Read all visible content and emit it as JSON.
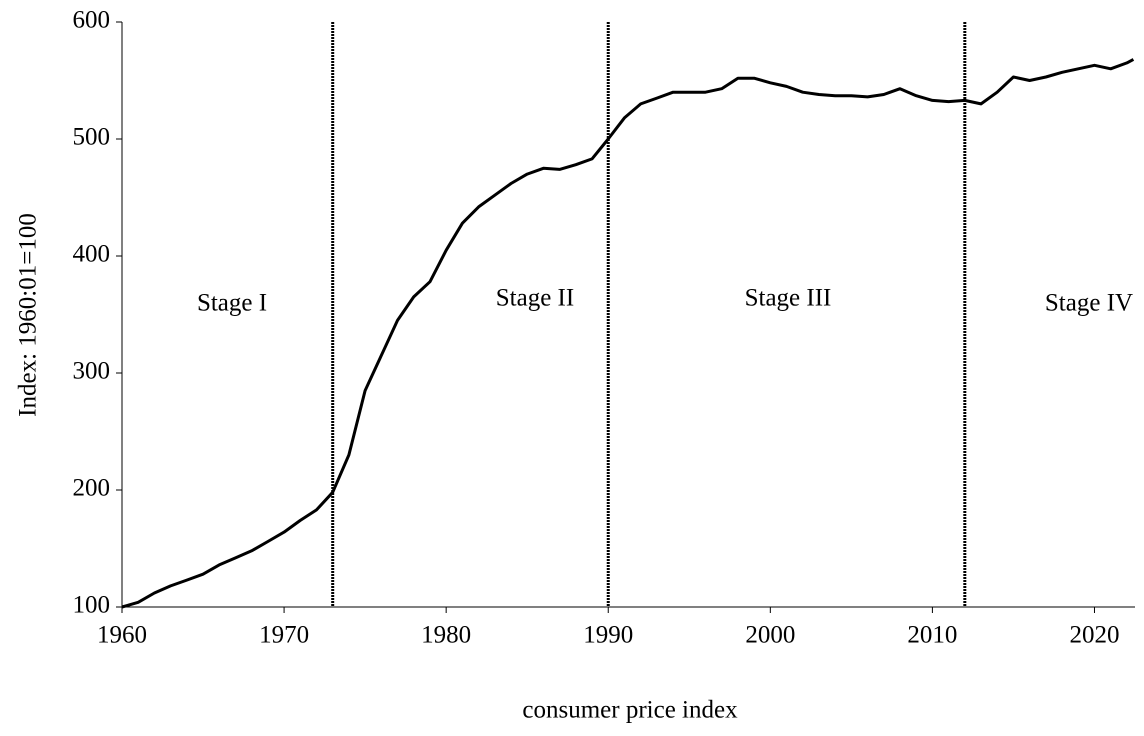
{
  "chart_data": {
    "type": "line",
    "x_label": "consumer price index",
    "y_label": "Index: 1960:01=100",
    "x": [
      1960,
      1961,
      1962,
      1963,
      1964,
      1965,
      1966,
      1967,
      1968,
      1969,
      1970,
      1971,
      1972,
      1973,
      1974,
      1975,
      1976,
      1977,
      1978,
      1979,
      1980,
      1981,
      1982,
      1983,
      1984,
      1985,
      1986,
      1987,
      1988,
      1989,
      1990,
      1991,
      1992,
      1993,
      1994,
      1995,
      1996,
      1997,
      1998,
      1999,
      2000,
      2001,
      2002,
      2003,
      2004,
      2005,
      2006,
      2007,
      2008,
      2009,
      2010,
      2011,
      2012,
      2013,
      2014,
      2015,
      2016,
      2017,
      2018,
      2019,
      2020,
      2021,
      2022,
      2022.4
    ],
    "series": [
      {
        "color": "#000000",
        "values": [
          100,
          104,
          112,
          118,
          123,
          128,
          136,
          142,
          148,
          156,
          164,
          174,
          183,
          198,
          230,
          285,
          315,
          345,
          365,
          378,
          405,
          428,
          442,
          452,
          462,
          470,
          475,
          474,
          478,
          483,
          500,
          518,
          530,
          535,
          540,
          540,
          540,
          543,
          552,
          552,
          548,
          545,
          540,
          538,
          537,
          537,
          536,
          538,
          543,
          537,
          533,
          532,
          533,
          530,
          540,
          553,
          550,
          553,
          557,
          560,
          563,
          560,
          565,
          568
        ]
      }
    ],
    "xlim": [
      1960,
      2022.5
    ],
    "ylim": [
      100,
      600
    ],
    "xticks": [
      1960,
      1970,
      1980,
      1990,
      2000,
      2010,
      2020
    ],
    "yticks": [
      100,
      200,
      300,
      400,
      500,
      600
    ],
    "vlines": [
      1973,
      1990,
      2012
    ],
    "annotations": [
      "Stage I",
      "Stage II",
      "Stage III",
      "Stage IV"
    ]
  }
}
